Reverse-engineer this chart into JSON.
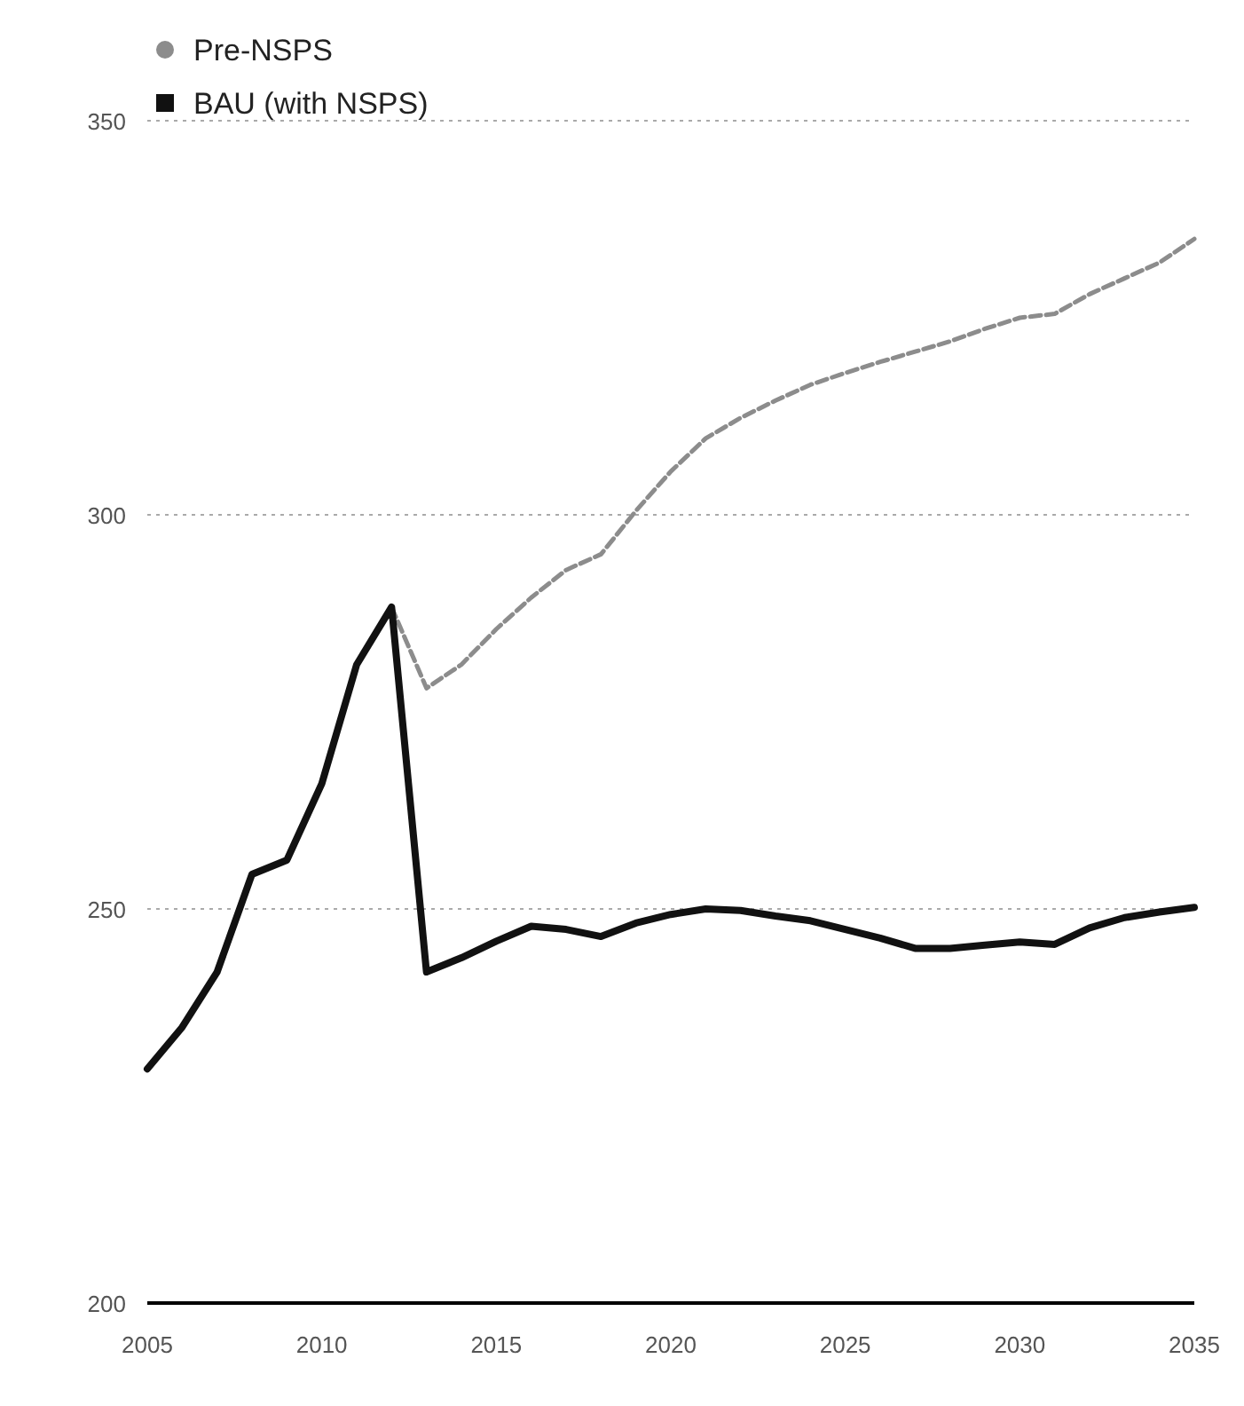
{
  "chart_data": {
    "type": "line",
    "x": [
      2005,
      2006,
      2007,
      2008,
      2009,
      2010,
      2011,
      2012,
      2013,
      2014,
      2015,
      2016,
      2017,
      2018,
      2019,
      2020,
      2021,
      2022,
      2023,
      2024,
      2025,
      2026,
      2027,
      2028,
      2029,
      2030,
      2031,
      2032,
      2033,
      2034,
      2035
    ],
    "series": [
      {
        "name": "Pre-NSPS",
        "color": "#8c8c8c",
        "line_style": "dashed",
        "values": [
          null,
          null,
          null,
          null,
          null,
          null,
          null,
          288.3,
          278,
          281,
          285.5,
          289.5,
          293,
          295,
          300.5,
          305.5,
          309.7,
          312.3,
          314.5,
          316.5,
          318,
          319.4,
          320.7,
          322,
          323.6,
          325,
          325.5,
          328,
          330,
          332,
          335
        ]
      },
      {
        "name": "BAU (with NSPS)",
        "color": "#111111",
        "line_style": "solid",
        "values": [
          229.7,
          235,
          242,
          254.4,
          256.2,
          265.9,
          281,
          288.3,
          242,
          243.8,
          245.9,
          247.8,
          247.4,
          246.5,
          248.2,
          249.3,
          250,
          249.8,
          249.1,
          248.5,
          247.4,
          246.3,
          245,
          245,
          245.4,
          245.8,
          245.5,
          247.6,
          248.9,
          249.6,
          250.2
        ]
      }
    ],
    "xlim": [
      2005,
      2035
    ],
    "xticks": [
      2005,
      2010,
      2015,
      2020,
      2025,
      2030,
      2035
    ],
    "ylim": [
      200,
      350
    ],
    "yticks": [
      200,
      250,
      300,
      350
    ],
    "grid": "y",
    "legend": "top left",
    "marker": "none"
  }
}
